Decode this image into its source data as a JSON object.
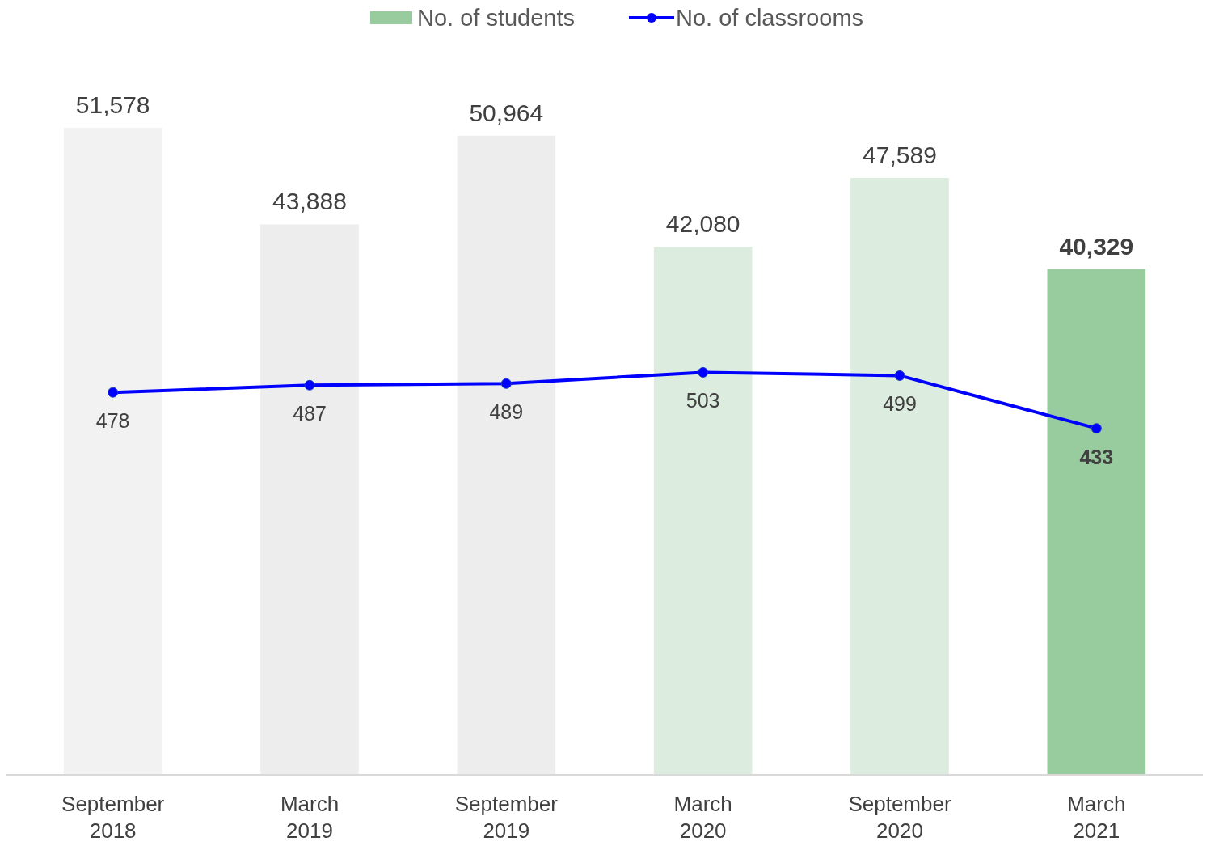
{
  "chart_data": {
    "type": "bar",
    "categories": [
      "September 2018",
      "March 2019",
      "September 2019",
      "March 2020",
      "September 2020",
      "March 2021"
    ],
    "legend": "top",
    "tick_labels": "x",
    "marker": "circle",
    "line_style": "solid",
    "series": [
      {
        "name": "No. of students",
        "color": "#98cc9f",
        "colors": [
          "#f2f2f2",
          "#ededed",
          "#ededed",
          "#dcede0",
          "#dcede0",
          "#98cc9f"
        ],
        "values": [
          51578,
          43888,
          50964,
          42080,
          47589,
          40329
        ],
        "value_labels": [
          "51,578",
          "43,888",
          "50,964",
          "42,080",
          "47,589",
          "40,329"
        ]
      },
      {
        "name": "No. of classrooms",
        "type": "line",
        "axis": "y2",
        "color": "#0000ff",
        "values": [
          478,
          487,
          489,
          503,
          499,
          433
        ],
        "value_labels": [
          "478",
          "487",
          "489",
          "503",
          "499",
          "433"
        ]
      }
    ]
  }
}
